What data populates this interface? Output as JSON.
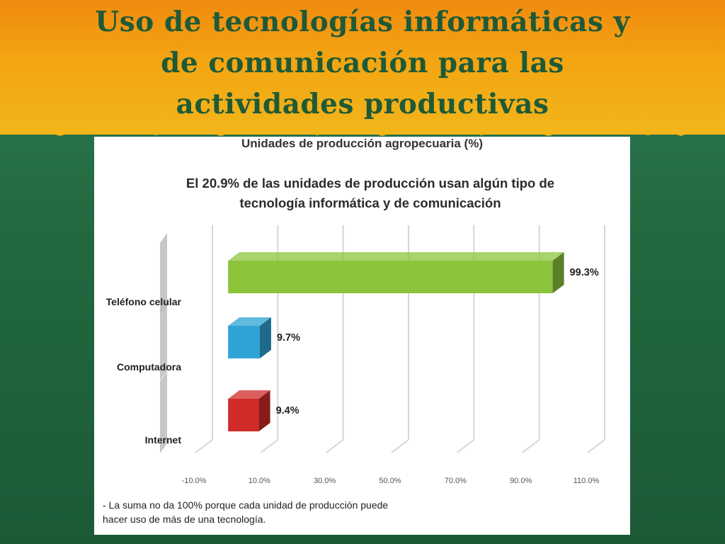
{
  "slide": {
    "title_lines": [
      "Uso de tecnologías informáticas y",
      "de comunicación para las",
      "actividades productivas"
    ],
    "note_lines": [
      "- La suma no da 100% porque cada unidad de producción puede",
      "hacer uso de más de una tecnología."
    ]
  },
  "chart_data": {
    "type": "bar",
    "orientation": "horizontal",
    "title": "Unidades de producción agropecuaria (%)",
    "subtitle_lines": [
      "El 20.9% de las unidades de producción usan algún tipo de",
      "tecnología informática y de comunicación"
    ],
    "categories": [
      "Teléfono celular",
      "Computadora",
      "Internet"
    ],
    "values": [
      99.3,
      9.7,
      9.4
    ],
    "value_labels": [
      "99.3%",
      "9.7%",
      "9.4%"
    ],
    "xlim": [
      -10,
      110
    ],
    "ticks": [
      -10,
      10,
      30,
      50,
      70,
      90,
      110
    ],
    "tick_labels": [
      "-10.0%",
      "10.0%",
      "30.0%",
      "50.0%",
      "70.0%",
      "90.0%",
      "110.0%"
    ],
    "colors": [
      "#8cc43c",
      "#2fa3d6",
      "#cf2b28"
    ],
    "grid": true,
    "legend": "none"
  }
}
